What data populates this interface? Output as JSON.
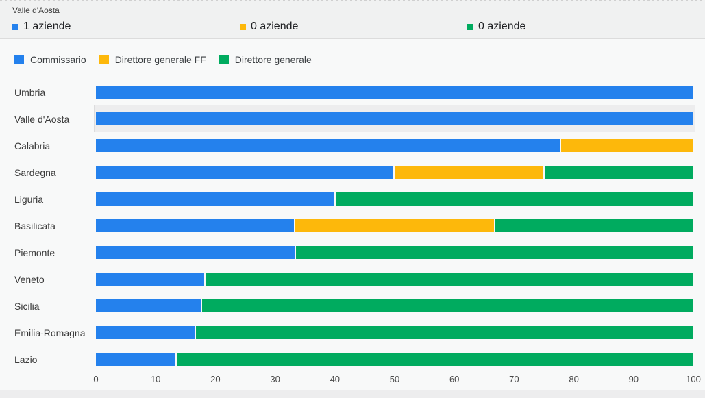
{
  "header": {
    "title": "Valle d'Aosta",
    "entries": [
      {
        "label": "1 aziende",
        "color": "#2481ed"
      },
      {
        "label": "0 aziende",
        "color": "#fdb80b"
      },
      {
        "label": "0 aziende",
        "color": "#00ab5f"
      }
    ]
  },
  "legend": [
    {
      "label": "Commissario",
      "color": "#2481ed"
    },
    {
      "label": "Direttore generale FF",
      "color": "#fdb80b"
    },
    {
      "label": "Direttore generale",
      "color": "#00ab5f"
    }
  ],
  "chart_data": {
    "type": "bar",
    "orientation": "horizontal",
    "stacked": "percent",
    "grid": false,
    "legend_position": "top",
    "title": "",
    "xlabel": "",
    "ylabel": "",
    "xlim": [
      0,
      100
    ],
    "xticks": [
      0,
      10,
      20,
      30,
      40,
      50,
      60,
      70,
      80,
      90,
      100
    ],
    "highlighted_category": "Valle d'Aosta",
    "categories": [
      "Umbria",
      "Valle d'Aosta",
      "Calabria",
      "Sardegna",
      "Liguria",
      "Basilicata",
      "Piemonte",
      "Veneto",
      "Sicilia",
      "Emilia-Romagna",
      "Lazio"
    ],
    "series": [
      {
        "name": "Commissario",
        "color": "#2481ed",
        "values": [
          100,
          100,
          77.8,
          50,
          40,
          33.3,
          33.3,
          18.2,
          17.6,
          16.5,
          13.3
        ]
      },
      {
        "name": "Direttore generale FF",
        "color": "#fdb80b",
        "values": [
          0,
          0,
          22.2,
          25,
          0,
          33.4,
          0,
          0,
          0,
          0,
          0
        ]
      },
      {
        "name": "Direttore generale",
        "color": "#00ab5f",
        "values": [
          0,
          0,
          0,
          25,
          60,
          33.3,
          66.7,
          81.8,
          82.4,
          83.5,
          86.7
        ]
      }
    ]
  }
}
